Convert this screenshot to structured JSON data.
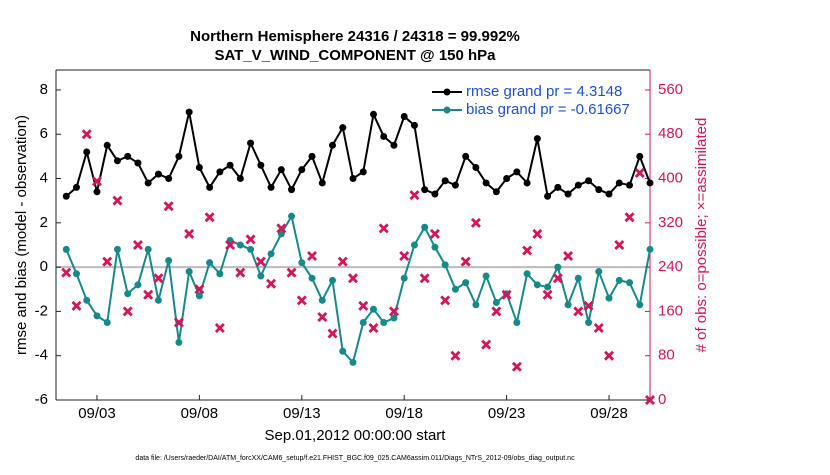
{
  "chart_data": {
    "type": "line",
    "title": "Northern Hemisphere 24316 / 24318 = 99.992%",
    "subtitle": "SAT_V_WIND_COMPONENT @ 150 hPa",
    "xlabel": "Sep.01,2012 00:00:00 start",
    "ylabel": "rmse and bias (model - observation)",
    "y2label": "# of obs: o=possible; ×=assimilated",
    "footnote": "data file: /Users/raeder/DAI/ATM_forcXX/CAM6_setup/f.e21.FHIST_BGC.f09_025.CAM6assim.011/Diags_NTrS_2012-09/obs_diag_output.nc",
    "x": [
      0.5,
      1,
      1.5,
      2,
      2.5,
      3,
      3.5,
      4,
      4.5,
      5,
      5.5,
      6,
      6.5,
      7,
      7.5,
      8,
      8.5,
      9,
      9.5,
      10,
      10.5,
      11,
      11.5,
      12,
      12.5,
      13,
      13.5,
      14,
      14.5,
      15,
      15.5,
      16,
      16.5,
      17,
      17.5,
      18,
      18.5,
      19,
      19.5,
      20,
      20.5,
      21,
      21.5,
      22,
      22.5,
      23,
      23.5,
      24,
      24.5,
      25,
      25.5,
      26,
      26.5,
      27,
      27.5,
      28,
      28.5,
      29
    ],
    "xlim": [
      0,
      29
    ],
    "xticks": [
      {
        "value": 2,
        "label": "09/03"
      },
      {
        "value": 7,
        "label": "09/08"
      },
      {
        "value": 12,
        "label": "09/13"
      },
      {
        "value": 17,
        "label": "09/18"
      },
      {
        "value": 22,
        "label": "09/23"
      },
      {
        "value": 27,
        "label": "09/28"
      }
    ],
    "ylim": [
      -6,
      8.9
    ],
    "yticks": [
      -6,
      -4,
      -2,
      0,
      2,
      4,
      6,
      8
    ],
    "y2lim": [
      0,
      596
    ],
    "y2ticks": [
      0,
      80,
      160,
      240,
      320,
      400,
      480,
      560
    ],
    "reference_line": 0,
    "legend": "upper right",
    "series": [
      {
        "name": "rmse grand pr = 4.3148",
        "color": "#000000",
        "mode": "lines+markers",
        "values": [
          3.2,
          3.6,
          5.2,
          3.4,
          5.5,
          4.8,
          5.0,
          4.7,
          3.8,
          4.2,
          4.0,
          5.0,
          7.0,
          4.5,
          3.6,
          4.3,
          4.6,
          4.0,
          5.6,
          4.6,
          3.6,
          4.4,
          3.5,
          4.4,
          5.0,
          3.8,
          5.5,
          6.3,
          4.0,
          4.3,
          6.9,
          5.9,
          5.5,
          6.8,
          6.4,
          3.5,
          3.3,
          3.9,
          3.7,
          5.0,
          4.5,
          3.8,
          3.4,
          4.0,
          4.3,
          3.8,
          5.8,
          3.2,
          3.6,
          3.3,
          3.7,
          3.9,
          3.5,
          3.3,
          3.8,
          3.7,
          5.0,
          3.8
        ]
      },
      {
        "name": "bias grand pr = -0.61667",
        "color": "#168a8a",
        "mode": "lines+markers",
        "values": [
          0.8,
          -0.3,
          -1.5,
          -2.2,
          -2.5,
          0.8,
          -1.2,
          -0.8,
          0.8,
          -1.5,
          0.3,
          -3.4,
          -0.2,
          -1.3,
          0.2,
          -0.3,
          1.2,
          1.0,
          0.8,
          -0.4,
          0.6,
          1.5,
          2.3,
          0.2,
          -0.5,
          -1.5,
          -0.6,
          -3.8,
          -4.3,
          -2.5,
          -1.9,
          -2.5,
          -2.3,
          -0.5,
          1.0,
          1.8,
          0.9,
          0.1,
          -1.0,
          -0.7,
          -1.7,
          -0.4,
          -1.6,
          -1.2,
          -2.5,
          -0.3,
          -0.8,
          -0.9,
          0.0,
          -1.7,
          -0.5,
          -2.5,
          -0.2,
          -1.4,
          -0.6,
          -0.7,
          -1.7,
          0.8
        ]
      },
      {
        "color": "#d6145a",
        "mode": "markers",
        "axis": "y2",
        "values": [
          230,
          170,
          480,
          395,
          250,
          360,
          160,
          280,
          190,
          220,
          350,
          140,
          300,
          200,
          330,
          130,
          280,
          230,
          290,
          250,
          210,
          310,
          230,
          180,
          260,
          150,
          120,
          250,
          220,
          170,
          130,
          310,
          160,
          260,
          370,
          220,
          300,
          180,
          80,
          250,
          320,
          100,
          160,
          190,
          60,
          270,
          300,
          190,
          220,
          260,
          160,
          170,
          130,
          80,
          280,
          330,
          410,
          0
        ]
      }
    ]
  }
}
